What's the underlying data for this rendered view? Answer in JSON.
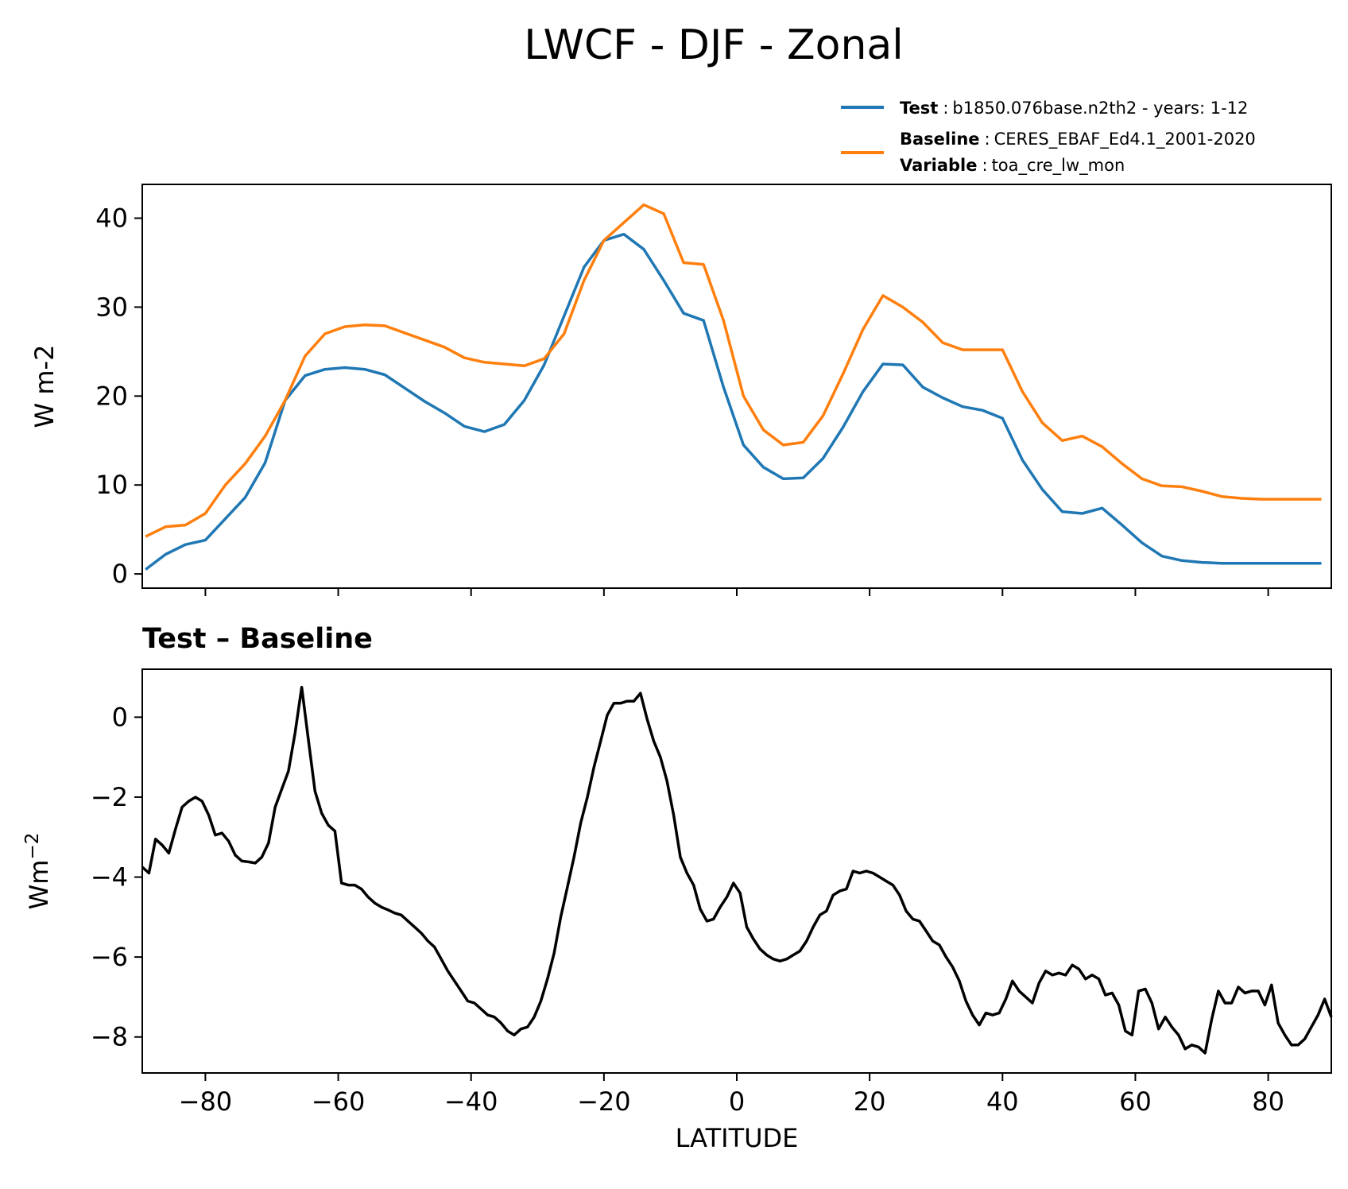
{
  "figure": {
    "title": "LWCF - DJF - Zonal"
  },
  "legend": {
    "test_label": "Test",
    "test_value": "b1850.076base.n2th2 - years: 1-12",
    "baseline_label": "Baseline",
    "baseline_value": "CERES_EBAF_Ed4.1_2001-2020",
    "variable_label": "Variable",
    "variable_value": "toa_cre_lw_mon",
    "separator": ":"
  },
  "colors": {
    "test": "#1f77b4",
    "baseline": "#ff7f0e",
    "difference": "#000000"
  },
  "chart_data": [
    {
      "type": "line",
      "title": "",
      "xlabel": "",
      "ylabel": "W m-2",
      "xlim": [
        -89.5,
        89.5
      ],
      "ylim": [
        -1.6,
        43.8
      ],
      "xticks": [
        -80,
        -60,
        -40,
        -20,
        0,
        20,
        40,
        60,
        80
      ],
      "yticks": [
        0,
        10,
        20,
        30,
        40
      ],
      "ytick_labels": [
        "0",
        "10",
        "20",
        "30",
        "40"
      ],
      "x": [
        -89,
        -86,
        -83,
        -80,
        -77,
        -74,
        -71,
        -68,
        -65,
        -62,
        -59,
        -56,
        -53,
        -50,
        -47,
        -44,
        -41,
        -38,
        -35,
        -32,
        -29,
        -26,
        -23,
        -20,
        -17,
        -14,
        -11,
        -8,
        -5,
        -2,
        1,
        4,
        7,
        10,
        13,
        16,
        19,
        22,
        25,
        28,
        31,
        34,
        37,
        40,
        43,
        46,
        49,
        52,
        55,
        58,
        61,
        64,
        67,
        70,
        73,
        76,
        79,
        82,
        85,
        88
      ],
      "series": [
        {
          "name": "Test",
          "color_key": "test",
          "values": [
            0.5,
            2.2,
            3.3,
            3.8,
            6.2,
            8.6,
            12.5,
            19.5,
            22.3,
            23.0,
            23.2,
            23.0,
            22.4,
            20.9,
            19.4,
            18.1,
            16.6,
            16.0,
            16.8,
            19.5,
            23.5,
            29.0,
            34.5,
            37.5,
            38.2,
            36.5,
            33.0,
            29.3,
            28.5,
            21.0,
            14.5,
            12.0,
            10.7,
            10.8,
            13.0,
            16.5,
            20.5,
            23.6,
            23.5,
            21.0,
            19.8,
            18.8,
            18.4,
            17.5,
            12.8,
            9.5,
            7.0,
            6.8,
            7.4,
            5.5,
            3.5,
            2.0,
            1.5,
            1.3,
            1.2,
            1.2,
            1.2,
            1.2,
            1.2,
            1.2
          ]
        },
        {
          "name": "Baseline",
          "color_key": "baseline",
          "values": [
            4.2,
            5.3,
            5.5,
            6.8,
            10.0,
            12.4,
            15.5,
            19.5,
            24.5,
            27.0,
            27.8,
            28.0,
            27.9,
            27.1,
            26.3,
            25.5,
            24.3,
            23.8,
            23.6,
            23.4,
            24.2,
            27.0,
            33.0,
            37.5,
            39.5,
            41.5,
            40.5,
            35.0,
            34.8,
            28.5,
            20.0,
            16.2,
            14.5,
            14.8,
            17.8,
            22.5,
            27.5,
            31.3,
            30.0,
            28.3,
            26.0,
            25.2,
            25.2,
            25.2,
            20.5,
            17.0,
            15.0,
            15.5,
            14.3,
            12.4,
            10.7,
            9.9,
            9.8,
            9.3,
            8.7,
            8.5,
            8.4,
            8.4,
            8.4,
            8.4
          ]
        }
      ]
    },
    {
      "type": "line",
      "title": "Test – Baseline",
      "xlabel": "LATITUDE",
      "ylabel": "Wm",
      "ylabel_superscript": "−2",
      "xlim": [
        -89.5,
        89.5
      ],
      "ylim": [
        -8.9,
        1.2
      ],
      "xticks": [
        -80,
        -60,
        -40,
        -20,
        0,
        20,
        40,
        60,
        80
      ],
      "xtick_labels": [
        "−80",
        "−60",
        "−40",
        "−20",
        "0",
        "20",
        "40",
        "60",
        "80"
      ],
      "yticks": [
        0,
        -2,
        -4,
        -6,
        -8
      ],
      "ytick_labels": [
        "0",
        "−2",
        "−4",
        "−6",
        "−8"
      ],
      "series": [
        {
          "name": "Test - Baseline",
          "color_key": "difference",
          "x": [
            -89.5,
            -88.5,
            -87.5,
            -86.5,
            -85.5,
            -84.5,
            -83.5,
            -82.5,
            -81.5,
            -80.5,
            -79.5,
            -78.5,
            -77.5,
            -76.5,
            -75.5,
            -74.5,
            -73.5,
            -72.5,
            -71.5,
            -70.5,
            -69.5,
            -68.5,
            -67.5,
            -66.5,
            -65.5,
            -64.5,
            -63.5,
            -62.5,
            -61.5,
            -60.5,
            -59.5,
            -58.5,
            -57.5,
            -56.5,
            -55.5,
            -54.5,
            -53.5,
            -52.5,
            -51.5,
            -50.5,
            -49.5,
            -48.5,
            -47.5,
            -46.5,
            -45.5,
            -44.5,
            -43.5,
            -42.5,
            -41.5,
            -40.5,
            -39.5,
            -38.5,
            -37.5,
            -36.5,
            -35.5,
            -34.5,
            -33.5,
            -32.5,
            -31.5,
            -30.5,
            -29.5,
            -28.5,
            -27.5,
            -26.5,
            -25.5,
            -24.5,
            -23.5,
            -22.5,
            -21.5,
            -20.5,
            -19.5,
            -18.5,
            -17.5,
            -16.5,
            -15.5,
            -14.5,
            -13.5,
            -12.5,
            -11.5,
            -10.5,
            -9.5,
            -8.5,
            -7.5,
            -6.5,
            -5.5,
            -4.5,
            -3.5,
            -2.5,
            -1.5,
            -0.5,
            0.5,
            1.5,
            2.5,
            3.5,
            4.5,
            5.5,
            6.5,
            7.5,
            8.5,
            9.5,
            10.5,
            11.5,
            12.5,
            13.5,
            14.5,
            15.5,
            16.5,
            17.5,
            18.5,
            19.5,
            20.5,
            21.5,
            22.5,
            23.5,
            24.5,
            25.5,
            26.5,
            27.5,
            28.5,
            29.5,
            30.5,
            31.5,
            32.5,
            33.5,
            34.5,
            35.5,
            36.5,
            37.5,
            38.5,
            39.5,
            40.5,
            41.5,
            42.5,
            43.5,
            44.5,
            45.5,
            46.5,
            47.5,
            48.5,
            49.5,
            50.5,
            51.5,
            52.5,
            53.5,
            54.5,
            55.5,
            56.5,
            57.5,
            58.5,
            59.5,
            60.5,
            61.5,
            62.5,
            63.5,
            64.5,
            65.5,
            66.5,
            67.5,
            68.5,
            69.5,
            70.5,
            71.5,
            72.5,
            73.5,
            74.5,
            75.5,
            76.5,
            77.5,
            78.5,
            79.5,
            80.5,
            81.5,
            82.5,
            83.5,
            84.5,
            85.5,
            86.5,
            87.5,
            88.5,
            89.5
          ],
          "values": [
            -3.75,
            -3.9,
            -3.05,
            -3.2,
            -3.4,
            -2.8,
            -2.25,
            -2.1,
            -2.0,
            -2.1,
            -2.45,
            -2.95,
            -2.9,
            -3.1,
            -3.45,
            -3.6,
            -3.62,
            -3.65,
            -3.5,
            -3.15,
            -2.25,
            -1.8,
            -1.35,
            -0.4,
            0.75,
            -0.55,
            -1.85,
            -2.4,
            -2.7,
            -2.85,
            -4.15,
            -4.2,
            -4.2,
            -4.3,
            -4.5,
            -4.65,
            -4.75,
            -4.82,
            -4.9,
            -4.95,
            -5.1,
            -5.25,
            -5.4,
            -5.6,
            -5.75,
            -6.05,
            -6.35,
            -6.6,
            -6.85,
            -7.1,
            -7.15,
            -7.3,
            -7.45,
            -7.5,
            -7.65,
            -7.85,
            -7.95,
            -7.8,
            -7.75,
            -7.5,
            -7.1,
            -6.55,
            -5.9,
            -5.0,
            -4.25,
            -3.5,
            -2.65,
            -2.0,
            -1.25,
            -0.6,
            0.05,
            0.35,
            0.35,
            0.4,
            0.4,
            0.6,
            -0.05,
            -0.6,
            -1.0,
            -1.6,
            -2.45,
            -3.5,
            -3.9,
            -4.2,
            -4.8,
            -5.1,
            -5.05,
            -4.75,
            -4.5,
            -4.15,
            -4.4,
            -5.25,
            -5.55,
            -5.8,
            -5.95,
            -6.05,
            -6.1,
            -6.05,
            -5.95,
            -5.85,
            -5.6,
            -5.25,
            -4.95,
            -4.85,
            -4.45,
            -4.35,
            -4.3,
            -3.85,
            -3.9,
            -3.85,
            -3.9,
            -4.0,
            -4.1,
            -4.2,
            -4.45,
            -4.85,
            -5.05,
            -5.1,
            -5.35,
            -5.6,
            -5.7,
            -6.0,
            -6.25,
            -6.6,
            -7.1,
            -7.45,
            -7.7,
            -7.4,
            -7.45,
            -7.4,
            -7.05,
            -6.6,
            -6.85,
            -7.0,
            -7.15,
            -6.65,
            -6.35,
            -6.45,
            -6.4,
            -6.45,
            -6.2,
            -6.3,
            -6.55,
            -6.45,
            -6.55,
            -6.95,
            -6.9,
            -7.2,
            -7.85,
            -7.95,
            -6.85,
            -6.8,
            -7.15,
            -7.8,
            -7.5,
            -7.75,
            -7.95,
            -8.3,
            -8.2,
            -8.25,
            -8.4,
            -7.55,
            -6.85,
            -7.15,
            -7.15,
            -6.75,
            -6.9,
            -6.85,
            -6.85,
            -7.2,
            -6.7,
            -7.65,
            -7.95,
            -8.2,
            -8.2,
            -8.05,
            -7.75,
            -7.45,
            -7.05,
            -7.5
          ]
        }
      ]
    }
  ]
}
